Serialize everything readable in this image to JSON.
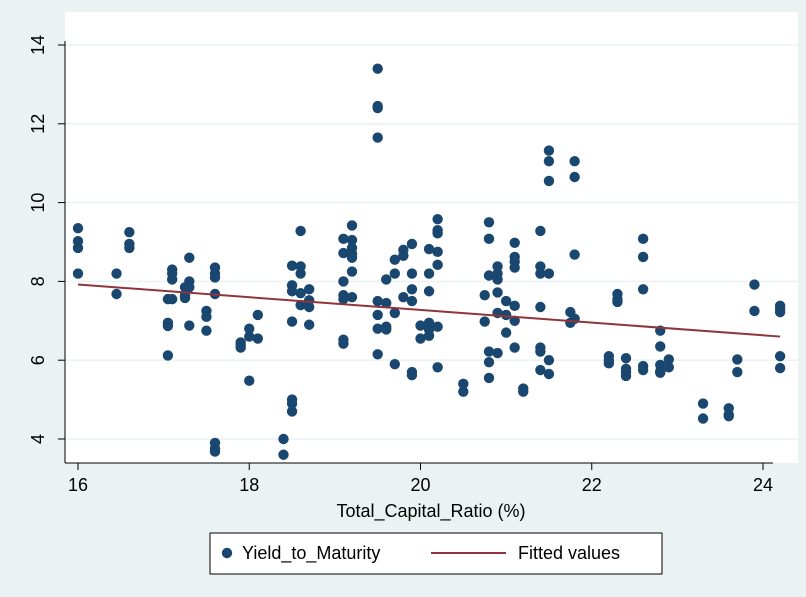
{
  "chart_data": {
    "type": "scatter",
    "xlabel": "Total_Capital_Ratio (%)",
    "ylabel": "",
    "xlim": [
      15.9,
      24.3
    ],
    "ylim": [
      3.4,
      14.4
    ],
    "x_ticks": [
      16,
      18,
      20,
      22,
      24
    ],
    "y_ticks": [
      4,
      6,
      8,
      10,
      12,
      14
    ],
    "grid": "horizontal",
    "legend_position": "bottom",
    "colors": {
      "background": "#eaf2f3",
      "plot_background": "#ffffff",
      "points": "#1a476f",
      "fitted_line": "#90353b"
    },
    "legend": [
      {
        "label": "Yield_to_Maturity",
        "kind": "marker"
      },
      {
        "label": "Fitted values",
        "kind": "line"
      }
    ],
    "series": [
      {
        "name": "Yield_to_Maturity",
        "kind": "scatter",
        "points": [
          [
            16.0,
            9.35
          ],
          [
            16.0,
            9.02
          ],
          [
            16.0,
            8.85
          ],
          [
            16.0,
            8.2
          ],
          [
            16.45,
            8.2
          ],
          [
            16.45,
            7.68
          ],
          [
            16.6,
            9.25
          ],
          [
            16.6,
            8.95
          ],
          [
            16.6,
            8.85
          ],
          [
            17.05,
            7.55
          ],
          [
            17.05,
            6.95
          ],
          [
            17.05,
            6.87
          ],
          [
            17.05,
            6.12
          ],
          [
            17.1,
            8.3
          ],
          [
            17.1,
            8.2
          ],
          [
            17.1,
            8.05
          ],
          [
            17.1,
            7.55
          ],
          [
            17.25,
            7.85
          ],
          [
            17.25,
            7.65
          ],
          [
            17.25,
            7.58
          ],
          [
            17.3,
            8.6
          ],
          [
            17.3,
            8.0
          ],
          [
            17.3,
            7.85
          ],
          [
            17.3,
            6.88
          ],
          [
            17.5,
            7.25
          ],
          [
            17.5,
            7.1
          ],
          [
            17.5,
            6.75
          ],
          [
            17.6,
            8.35
          ],
          [
            17.6,
            8.2
          ],
          [
            17.6,
            8.1
          ],
          [
            17.6,
            7.68
          ],
          [
            17.6,
            3.9
          ],
          [
            17.6,
            3.75
          ],
          [
            17.6,
            3.68
          ],
          [
            17.9,
            6.45
          ],
          [
            17.9,
            6.38
          ],
          [
            17.9,
            6.32
          ],
          [
            18.0,
            6.8
          ],
          [
            18.0,
            6.6
          ],
          [
            18.0,
            5.48
          ],
          [
            18.1,
            7.15
          ],
          [
            18.1,
            6.55
          ],
          [
            18.4,
            4.0
          ],
          [
            18.4,
            3.6
          ],
          [
            18.5,
            8.4
          ],
          [
            18.5,
            7.9
          ],
          [
            18.5,
            7.75
          ],
          [
            18.5,
            6.98
          ],
          [
            18.5,
            5.0
          ],
          [
            18.5,
            4.9
          ],
          [
            18.5,
            4.7
          ],
          [
            18.6,
            9.28
          ],
          [
            18.6,
            8.38
          ],
          [
            18.6,
            8.2
          ],
          [
            18.6,
            7.7
          ],
          [
            18.6,
            7.4
          ],
          [
            18.7,
            7.8
          ],
          [
            18.7,
            7.52
          ],
          [
            18.7,
            7.35
          ],
          [
            18.7,
            6.9
          ],
          [
            19.1,
            9.08
          ],
          [
            19.1,
            8.72
          ],
          [
            19.1,
            8.0
          ],
          [
            19.1,
            7.65
          ],
          [
            19.1,
            7.55
          ],
          [
            19.1,
            6.52
          ],
          [
            19.1,
            6.42
          ],
          [
            19.2,
            9.42
          ],
          [
            19.2,
            9.05
          ],
          [
            19.2,
            8.85
          ],
          [
            19.2,
            8.7
          ],
          [
            19.2,
            8.6
          ],
          [
            19.2,
            8.25
          ],
          [
            19.2,
            7.6
          ],
          [
            19.5,
            13.4
          ],
          [
            19.5,
            12.45
          ],
          [
            19.5,
            12.4
          ],
          [
            19.5,
            11.65
          ],
          [
            19.5,
            7.5
          ],
          [
            19.5,
            7.15
          ],
          [
            19.5,
            6.8
          ],
          [
            19.5,
            6.15
          ],
          [
            19.6,
            8.05
          ],
          [
            19.6,
            7.45
          ],
          [
            19.6,
            6.85
          ],
          [
            19.6,
            6.78
          ],
          [
            19.7,
            8.55
          ],
          [
            19.7,
            8.2
          ],
          [
            19.7,
            7.2
          ],
          [
            19.7,
            5.9
          ],
          [
            19.8,
            8.8
          ],
          [
            19.8,
            8.65
          ],
          [
            19.8,
            7.6
          ],
          [
            19.9,
            8.95
          ],
          [
            19.9,
            8.2
          ],
          [
            19.9,
            7.8
          ],
          [
            19.9,
            7.5
          ],
          [
            19.9,
            5.7
          ],
          [
            19.9,
            5.62
          ],
          [
            20.0,
            6.88
          ],
          [
            20.0,
            6.55
          ],
          [
            20.1,
            8.82
          ],
          [
            20.1,
            8.2
          ],
          [
            20.1,
            7.75
          ],
          [
            20.1,
            6.95
          ],
          [
            20.1,
            6.85
          ],
          [
            20.1,
            6.78
          ],
          [
            20.1,
            6.62
          ],
          [
            20.2,
            9.58
          ],
          [
            20.2,
            9.3
          ],
          [
            20.2,
            9.22
          ],
          [
            20.2,
            8.75
          ],
          [
            20.2,
            8.42
          ],
          [
            20.2,
            6.85
          ],
          [
            20.2,
            5.82
          ],
          [
            20.5,
            5.4
          ],
          [
            20.5,
            5.2
          ],
          [
            20.75,
            7.65
          ],
          [
            20.75,
            6.98
          ],
          [
            20.8,
            9.5
          ],
          [
            20.8,
            9.08
          ],
          [
            20.8,
            8.15
          ],
          [
            20.8,
            6.22
          ],
          [
            20.8,
            5.95
          ],
          [
            20.8,
            5.55
          ],
          [
            20.9,
            8.38
          ],
          [
            20.9,
            8.2
          ],
          [
            20.9,
            8.05
          ],
          [
            20.9,
            7.72
          ],
          [
            20.9,
            7.2
          ],
          [
            20.9,
            6.18
          ],
          [
            21.0,
            7.5
          ],
          [
            21.0,
            7.15
          ],
          [
            21.0,
            6.7
          ],
          [
            21.1,
            8.98
          ],
          [
            21.1,
            8.62
          ],
          [
            21.1,
            8.5
          ],
          [
            21.1,
            8.35
          ],
          [
            21.1,
            7.38
          ],
          [
            21.1,
            7.0
          ],
          [
            21.1,
            6.32
          ],
          [
            21.2,
            5.28
          ],
          [
            21.2,
            5.2
          ],
          [
            21.4,
            9.28
          ],
          [
            21.4,
            8.38
          ],
          [
            21.4,
            8.2
          ],
          [
            21.4,
            7.35
          ],
          [
            21.4,
            6.32
          ],
          [
            21.4,
            6.22
          ],
          [
            21.4,
            5.75
          ],
          [
            21.5,
            11.32
          ],
          [
            21.5,
            11.05
          ],
          [
            21.5,
            10.55
          ],
          [
            21.5,
            8.2
          ],
          [
            21.5,
            6.0
          ],
          [
            21.5,
            5.65
          ],
          [
            21.75,
            7.22
          ],
          [
            21.75,
            6.95
          ],
          [
            21.8,
            11.05
          ],
          [
            21.8,
            10.65
          ],
          [
            21.8,
            8.68
          ],
          [
            21.8,
            7.05
          ],
          [
            22.2,
            6.1
          ],
          [
            22.2,
            6.0
          ],
          [
            22.2,
            5.92
          ],
          [
            22.3,
            7.68
          ],
          [
            22.3,
            7.55
          ],
          [
            22.3,
            7.48
          ],
          [
            22.4,
            6.05
          ],
          [
            22.4,
            5.78
          ],
          [
            22.4,
            5.7
          ],
          [
            22.4,
            5.6
          ],
          [
            22.6,
            9.08
          ],
          [
            22.6,
            8.62
          ],
          [
            22.6,
            7.8
          ],
          [
            22.6,
            5.85
          ],
          [
            22.6,
            5.75
          ],
          [
            22.8,
            6.75
          ],
          [
            22.8,
            6.35
          ],
          [
            22.8,
            5.88
          ],
          [
            22.8,
            5.72
          ],
          [
            22.8,
            5.68
          ],
          [
            22.9,
            6.02
          ],
          [
            22.9,
            5.82
          ],
          [
            23.3,
            4.9
          ],
          [
            23.3,
            4.52
          ],
          [
            23.6,
            4.78
          ],
          [
            23.6,
            4.62
          ],
          [
            23.6,
            4.58
          ],
          [
            23.7,
            6.02
          ],
          [
            23.7,
            5.7
          ],
          [
            23.9,
            7.92
          ],
          [
            23.9,
            7.25
          ],
          [
            24.2,
            7.38
          ],
          [
            24.2,
            7.3
          ],
          [
            24.2,
            7.22
          ],
          [
            24.2,
            6.1
          ],
          [
            24.2,
            5.8
          ]
        ]
      },
      {
        "name": "Fitted values",
        "kind": "line",
        "points": [
          [
            16.0,
            7.92
          ],
          [
            24.2,
            6.6
          ]
        ]
      }
    ]
  }
}
